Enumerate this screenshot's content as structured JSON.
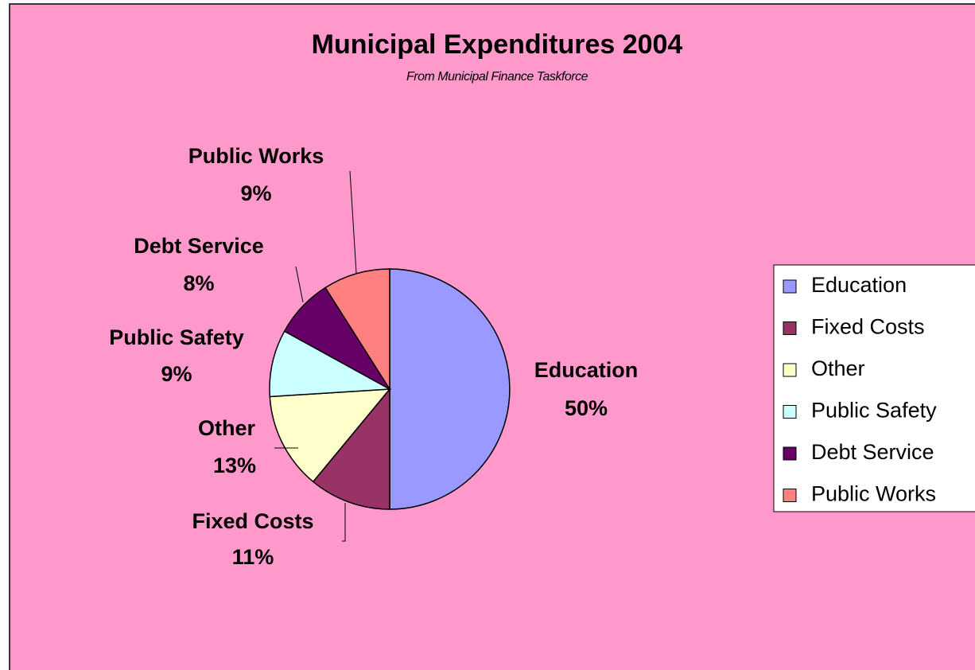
{
  "chart_data": {
    "type": "pie",
    "title": "Municipal Expenditures 2004",
    "subtitle": "From Municipal Finance Taskforce",
    "categories": [
      "Education",
      "Fixed Costs",
      "Other",
      "Public Safety",
      "Debt Service",
      "Public Works"
    ],
    "values": [
      50,
      11,
      13,
      9,
      8,
      9
    ],
    "value_labels": [
      "50%",
      "11%",
      "13%",
      "9%",
      "8%",
      "9%"
    ],
    "colors": [
      "#9999FF",
      "#993366",
      "#FFFFCC",
      "#CCFFFF",
      "#660066",
      "#FF8080"
    ],
    "legend": "right"
  }
}
